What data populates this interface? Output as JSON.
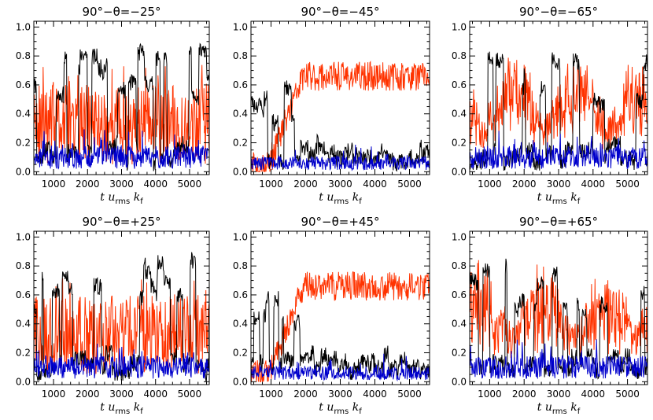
{
  "chart_data": [
    {
      "type": "line",
      "title": "90°−θ=−25°",
      "xlabel": {
        "t": "t",
        "u": "u",
        "u_sub": "rms",
        "k": "k",
        "k_sub": "f"
      },
      "xlim": [
        420,
        5580
      ],
      "ylim": [
        -0.02,
        1.04
      ],
      "xticks": [
        1000,
        2000,
        3000,
        4000,
        5000
      ],
      "yticks": [
        0.0,
        0.2,
        0.4,
        0.6,
        0.8,
        1.0
      ],
      "ytick_labels": [
        "0.0",
        "0.2",
        "0.4",
        "0.6",
        "0.8",
        "1.0"
      ],
      "pattern": "bursty",
      "seed": 11,
      "colors": {
        "black": "#000000",
        "red": "#ff3300",
        "blue": "#0000cc"
      }
    },
    {
      "type": "line",
      "title": "90°−θ=−45°",
      "xlabel": {
        "t": "t",
        "u": "u",
        "u_sub": "rms",
        "k": "k",
        "k_sub": "f"
      },
      "xlim": [
        420,
        5580
      ],
      "ylim": [
        -0.02,
        1.04
      ],
      "xticks": [
        1000,
        2000,
        3000,
        4000,
        5000
      ],
      "yticks": [
        0.0,
        0.2,
        0.4,
        0.6,
        0.8,
        1.0
      ],
      "ytick_labels": [
        "0.0",
        "0.2",
        "0.4",
        "0.6",
        "0.8",
        "1.0"
      ],
      "pattern": "grow",
      "seed": 23,
      "colors": {
        "black": "#000000",
        "red": "#ff3300",
        "blue": "#0000cc"
      }
    },
    {
      "type": "line",
      "title": "90°−θ=−65°",
      "xlabel": {
        "t": "t",
        "u": "u",
        "u_sub": "rms",
        "k": "k",
        "k_sub": "f"
      },
      "xlim": [
        420,
        5580
      ],
      "ylim": [
        -0.02,
        1.04
      ],
      "xticks": [
        1000,
        2000,
        3000,
        4000,
        5000
      ],
      "yticks": [
        0.0,
        0.2,
        0.4,
        0.6,
        0.8,
        1.0
      ],
      "ytick_labels": [
        "0.0",
        "0.2",
        "0.4",
        "0.6",
        "0.8",
        "1.0"
      ],
      "pattern": "mixed",
      "seed": 37,
      "colors": {
        "black": "#000000",
        "red": "#ff3300",
        "blue": "#0000cc"
      }
    },
    {
      "type": "line",
      "title": "90°−θ=+25°",
      "xlabel": {
        "t": "t",
        "u": "u",
        "u_sub": "rms",
        "k": "k",
        "k_sub": "f"
      },
      "xlim": [
        420,
        5580
      ],
      "ylim": [
        -0.02,
        1.04
      ],
      "xticks": [
        1000,
        2000,
        3000,
        4000,
        5000
      ],
      "yticks": [
        0.0,
        0.2,
        0.4,
        0.6,
        0.8,
        1.0
      ],
      "ytick_labels": [
        "0.0",
        "0.2",
        "0.4",
        "0.6",
        "0.8",
        "1.0"
      ],
      "pattern": "bursty",
      "seed": 53,
      "colors": {
        "black": "#000000",
        "red": "#ff3300",
        "blue": "#0000cc"
      }
    },
    {
      "type": "line",
      "title": "90°−θ=+45°",
      "xlabel": {
        "t": "t",
        "u": "u",
        "u_sub": "rms",
        "k": "k",
        "k_sub": "f"
      },
      "xlim": [
        420,
        5580
      ],
      "ylim": [
        -0.02,
        1.04
      ],
      "xticks": [
        1000,
        2000,
        3000,
        4000,
        5000
      ],
      "yticks": [
        0.0,
        0.2,
        0.4,
        0.6,
        0.8,
        1.0
      ],
      "ytick_labels": [
        "0.0",
        "0.2",
        "0.4",
        "0.6",
        "0.8",
        "1.0"
      ],
      "pattern": "grow",
      "seed": 71,
      "colors": {
        "black": "#000000",
        "red": "#ff3300",
        "blue": "#0000cc"
      }
    },
    {
      "type": "line",
      "title": "90°−θ=+65°",
      "xlabel": {
        "t": "t",
        "u": "u",
        "u_sub": "rms",
        "k": "k",
        "k_sub": "f"
      },
      "xlim": [
        420,
        5580
      ],
      "ylim": [
        -0.02,
        1.04
      ],
      "xticks": [
        1000,
        2000,
        3000,
        4000,
        5000
      ],
      "yticks": [
        0.0,
        0.2,
        0.4,
        0.6,
        0.8,
        1.0
      ],
      "ytick_labels": [
        "0.0",
        "0.2",
        "0.4",
        "0.6",
        "0.8",
        "1.0"
      ],
      "pattern": "mixed",
      "seed": 89,
      "colors": {
        "black": "#000000",
        "red": "#ff3300",
        "blue": "#0000cc"
      }
    }
  ]
}
